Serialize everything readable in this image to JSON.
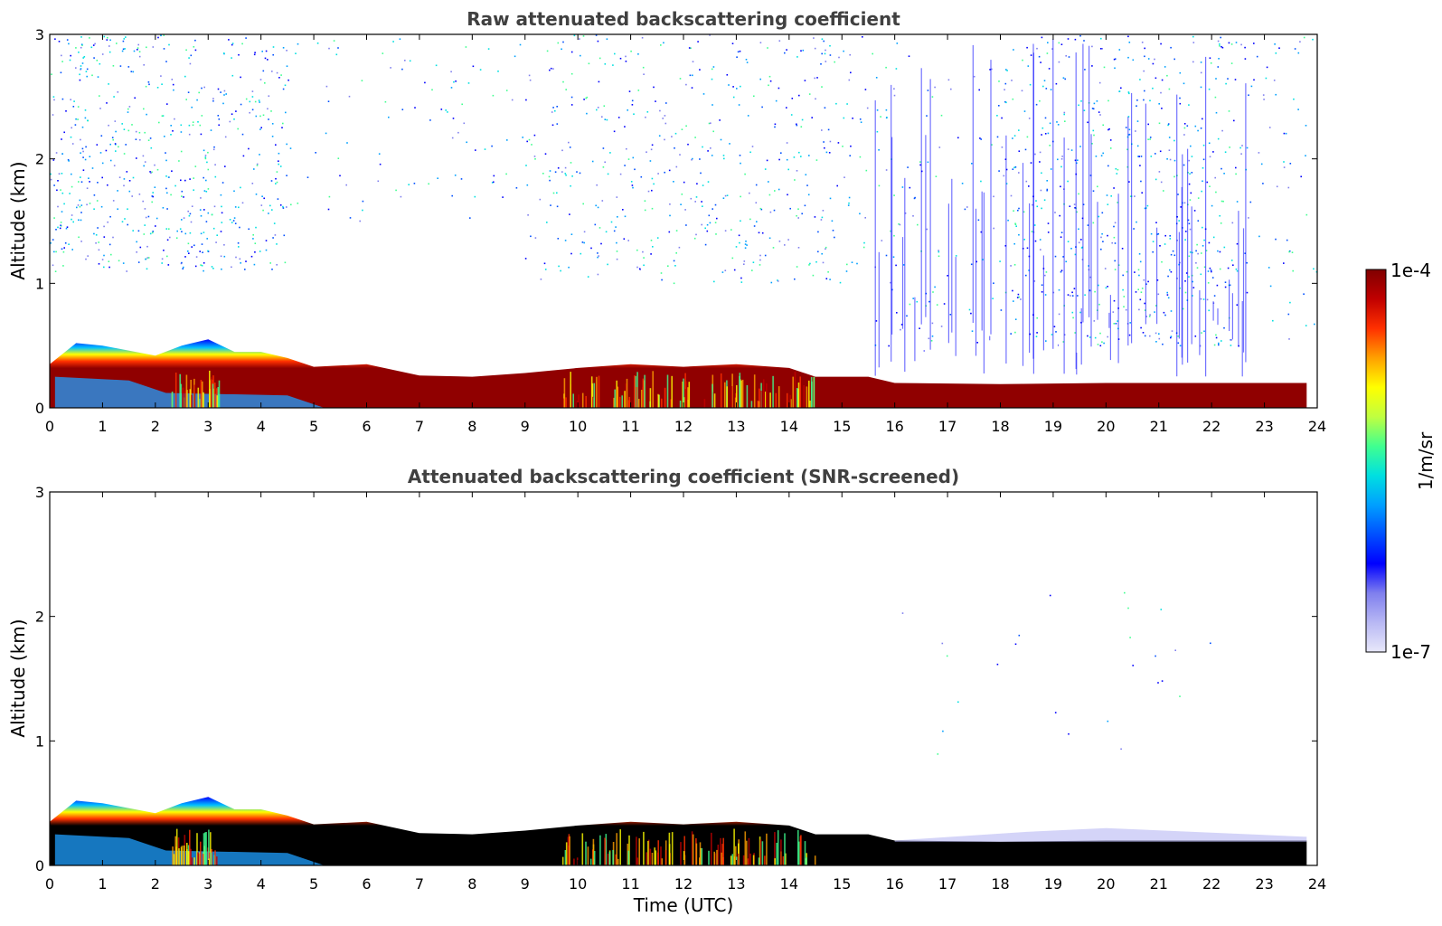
{
  "chart_data": [
    {
      "type": "heatmap",
      "title": "Raw attenuated backscattering coefficient",
      "ylabel": "Altitude (km)",
      "xlabel": "",
      "xlim": [
        0,
        24
      ],
      "ylim": [
        0,
        3
      ],
      "xticks": [
        0,
        1,
        2,
        3,
        4,
        5,
        6,
        7,
        8,
        9,
        10,
        11,
        12,
        13,
        14,
        15,
        16,
        17,
        18,
        19,
        20,
        21,
        22,
        23,
        24
      ],
      "yticks": [
        0,
        1,
        2,
        3
      ],
      "variant": "raw"
    },
    {
      "type": "heatmap",
      "title": "Attenuated backscattering coefficient (SNR-screened)",
      "ylabel": "Altitude (km)",
      "xlabel": "Time (UTC)",
      "xlim": [
        0,
        24
      ],
      "ylim": [
        0,
        3
      ],
      "xticks": [
        0,
        1,
        2,
        3,
        4,
        5,
        6,
        7,
        8,
        9,
        10,
        11,
        12,
        13,
        14,
        15,
        16,
        17,
        18,
        19,
        20,
        21,
        22,
        23,
        24
      ],
      "yticks": [
        0,
        1,
        2,
        3
      ],
      "variant": "screened"
    }
  ],
  "colorbar": {
    "label": "1/m/sr",
    "max_label": "1e-4",
    "min_label": "1e-7",
    "colors": [
      "#e8e8fa",
      "#b8b8f4",
      "#7f7fee",
      "#0000ff",
      "#0050ff",
      "#00a0ff",
      "#00e0e0",
      "#40ff90",
      "#c0ff40",
      "#ffff00",
      "#ffa000",
      "#ff3000",
      "#c00000",
      "#800000"
    ]
  },
  "layer_top_km": [
    [
      0.0,
      0.35
    ],
    [
      0.5,
      0.52
    ],
    [
      1.0,
      0.5
    ],
    [
      2.0,
      0.42
    ],
    [
      2.5,
      0.5
    ],
    [
      3.0,
      0.55
    ],
    [
      3.5,
      0.45
    ],
    [
      4.0,
      0.45
    ],
    [
      4.5,
      0.4
    ],
    [
      5.0,
      0.33
    ],
    [
      6.0,
      0.35
    ],
    [
      7.0,
      0.26
    ],
    [
      8.0,
      0.25
    ],
    [
      9.0,
      0.28
    ],
    [
      10.0,
      0.32
    ],
    [
      11.0,
      0.35
    ],
    [
      12.0,
      0.33
    ],
    [
      13.0,
      0.35
    ],
    [
      14.0,
      0.32
    ],
    [
      14.5,
      0.25
    ],
    [
      15.5,
      0.25
    ],
    [
      16.0,
      0.2
    ],
    [
      18.0,
      0.19
    ],
    [
      20.0,
      0.2
    ],
    [
      22.0,
      0.2
    ],
    [
      23.8,
      0.2
    ]
  ]
}
